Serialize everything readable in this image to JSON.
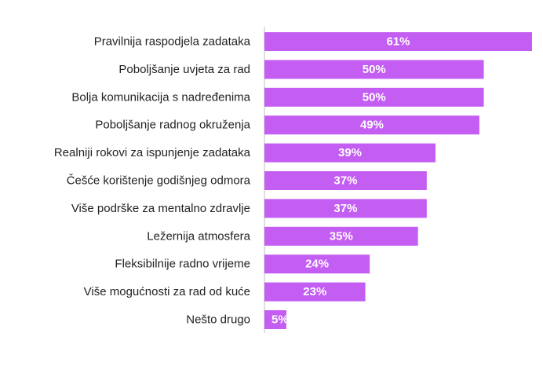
{
  "chart_data": {
    "type": "bar",
    "orientation": "horizontal",
    "categories": [
      "Pravilnija raspodjela zadataka",
      "Poboljšanje uvjeta za rad",
      "Bolja komunikacija s nadređenima",
      "Poboljšanje radnog okruženja",
      "Realniji rokovi za ispunjenje zadataka",
      "Češće korištenje godišnjeg odmora",
      "Više podrške za mentalno zdravlje",
      "Ležernija atmosfera",
      "Fleksibilnije radno vrijeme",
      "Više mogućnosti za rad od kuće",
      "Nešto drugo"
    ],
    "values": [
      61,
      50,
      50,
      49,
      39,
      37,
      37,
      35,
      24,
      23,
      5
    ],
    "value_labels": [
      "61%",
      "50%",
      "50%",
      "49%",
      "39%",
      "37%",
      "37%",
      "35%",
      "24%",
      "23%",
      "5%"
    ],
    "title": "",
    "xlabel": "",
    "ylabel": "",
    "xlim": [
      0,
      61
    ],
    "grid": false,
    "legend": "none",
    "bar_color": "#C45DF2",
    "axis_color": "#BFBFBF"
  }
}
